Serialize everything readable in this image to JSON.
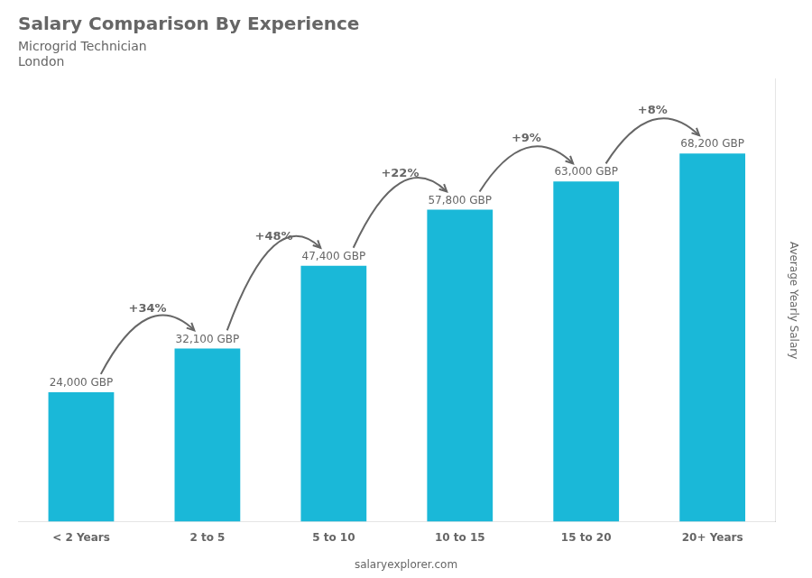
{
  "chart_data": {
    "type": "bar",
    "title": "Salary Comparison By Experience",
    "subtitle": [
      "Microgrid Technician",
      "London"
    ],
    "categories": [
      "< 2 Years",
      "2 to 5",
      "5 to 10",
      "10 to 15",
      "15 to 20",
      "20+ Years"
    ],
    "values": [
      24000,
      32100,
      47400,
      57800,
      63000,
      68200
    ],
    "value_labels": [
      "24,000 GBP",
      "32,100 GBP",
      "47,400 GBP",
      "57,800 GBP",
      "63,000 GBP",
      "68,200 GBP"
    ],
    "data_labels": true,
    "color": "#1ab8d8",
    "y_label": "Average Yearly Salary",
    "ylim": [
      0,
      82000
    ],
    "tick_labels": "x",
    "grid": false,
    "annotations": [
      {
        "text": "+34%",
        "from": "< 2 Years",
        "to": "2 to 5"
      },
      {
        "text": "+48%",
        "from": "2 to 5",
        "to": "5 to 10"
      },
      {
        "text": "+22%",
        "from": "5 to 10",
        "to": "10 to 15"
      },
      {
        "text": "+9%",
        "from": "10 to 15",
        "to": "15 to 20"
      },
      {
        "text": "+8%",
        "from": "15 to 20",
        "to": "20+ Years"
      }
    ],
    "footer": "salaryexplorer.com"
  }
}
